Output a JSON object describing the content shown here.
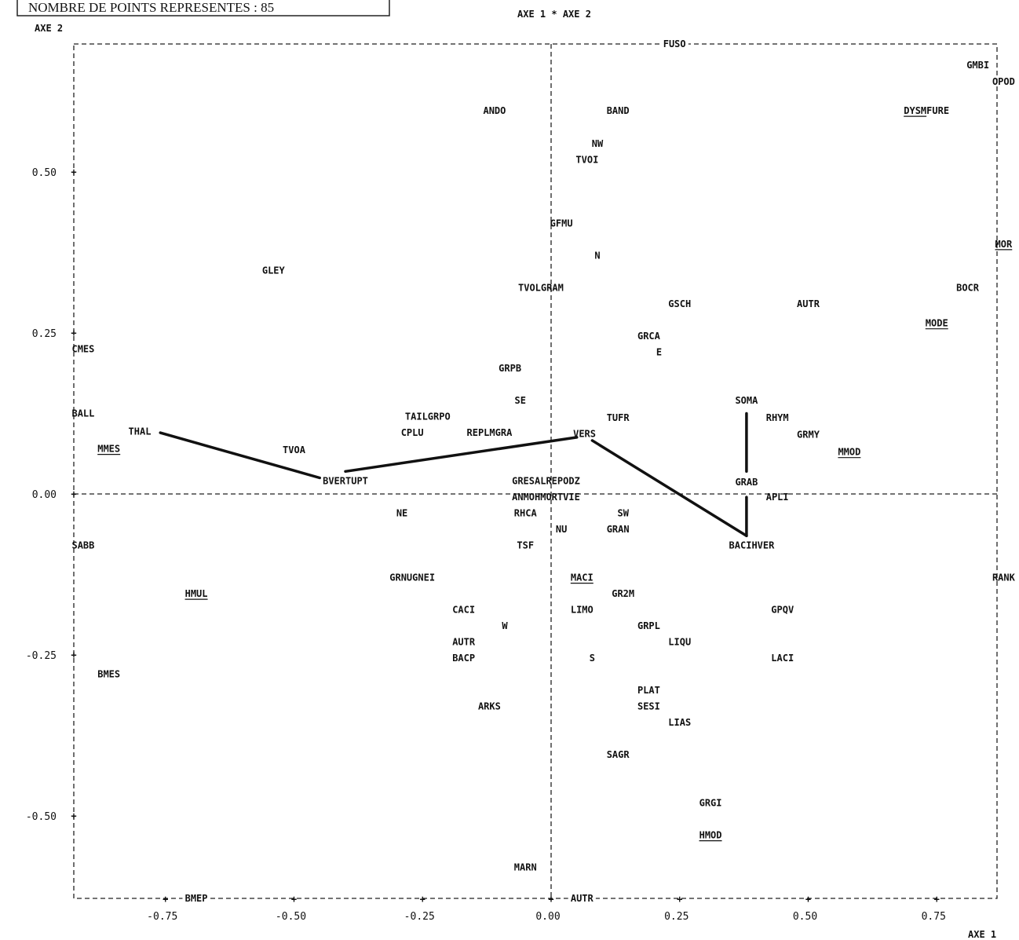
{
  "header": {
    "count_label": "NOMBRE DE POINTS REPRESENTES : 85",
    "plot_title": "AXE 1 * AXE 2"
  },
  "chart_data": {
    "type": "scatter",
    "xlabel": "AXE 1",
    "ylabel": "AXE 2",
    "xlim": [
      -0.93,
      0.88
    ],
    "ylim": [
      -0.62,
      0.7
    ],
    "xticks": [
      {
        "v": -0.75,
        "label": "-0.75"
      },
      {
        "v": -0.5,
        "label": "-0.50"
      },
      {
        "v": -0.25,
        "label": "-0.25"
      },
      {
        "v": 0.0,
        "label": "0.00"
      },
      {
        "v": 0.25,
        "label": "0.25"
      },
      {
        "v": 0.5,
        "label": "0.50"
      },
      {
        "v": 0.75,
        "label": "0.75"
      }
    ],
    "yticks": [
      {
        "v": 0.5,
        "label": "0.50"
      },
      {
        "v": 0.25,
        "label": "0.25"
      },
      {
        "v": 0.0,
        "label": "0.00"
      },
      {
        "v": -0.25,
        "label": "-0.25"
      },
      {
        "v": -0.5,
        "label": "-0.50"
      }
    ],
    "border_labels": [
      {
        "text": "FUSO",
        "x": 0.24,
        "y": 0.695
      },
      {
        "text": "BMEP",
        "x": -0.69,
        "y": -0.62
      },
      {
        "text": "AUTR",
        "x": 0.06,
        "y": -0.62
      }
    ],
    "points": [
      {
        "label": "ANDO",
        "x": -0.11,
        "y": 0.595
      },
      {
        "label": "BAND",
        "x": 0.13,
        "y": 0.595
      },
      {
        "label": "GMBI",
        "x": 0.83,
        "y": 0.666
      },
      {
        "label": "OPOD",
        "x": 0.88,
        "y": 0.64
      },
      {
        "label": "DYSMFURE",
        "x": 0.73,
        "y": 0.595
      },
      {
        "label": "NW",
        "x": 0.09,
        "y": 0.544
      },
      {
        "label": "TVOI",
        "x": 0.07,
        "y": 0.519
      },
      {
        "label": "GFMU",
        "x": 0.02,
        "y": 0.42
      },
      {
        "label": "MOR",
        "x": 0.88,
        "y": 0.388
      },
      {
        "label": "N",
        "x": 0.09,
        "y": 0.37
      },
      {
        "label": "GLEY",
        "x": -0.54,
        "y": 0.347
      },
      {
        "label": "TVOLGRAM",
        "x": -0.02,
        "y": 0.32
      },
      {
        "label": "GSCH",
        "x": 0.25,
        "y": 0.295
      },
      {
        "label": "AUTR",
        "x": 0.5,
        "y": 0.295
      },
      {
        "label": "BOCR",
        "x": 0.81,
        "y": 0.32
      },
      {
        "label": "MODE",
        "x": 0.75,
        "y": 0.265
      },
      {
        "label": "CMES",
        "x": -0.91,
        "y": 0.225
      },
      {
        "label": "GRCA",
        "x": 0.19,
        "y": 0.245
      },
      {
        "label": "E",
        "x": 0.21,
        "y": 0.22
      },
      {
        "label": "GRPB",
        "x": -0.08,
        "y": 0.195
      },
      {
        "label": "SE",
        "x": -0.06,
        "y": 0.145
      },
      {
        "label": "SOMA",
        "x": 0.38,
        "y": 0.145
      },
      {
        "label": "BALL",
        "x": -0.91,
        "y": 0.125
      },
      {
        "label": "TAILGRPO",
        "x": -0.24,
        "y": 0.12
      },
      {
        "label": "TUFR",
        "x": 0.13,
        "y": 0.118
      },
      {
        "label": "RHYM",
        "x": 0.44,
        "y": 0.118
      },
      {
        "label": "THAL",
        "x": -0.8,
        "y": 0.097
      },
      {
        "label": "CPLU",
        "x": -0.27,
        "y": 0.095
      },
      {
        "label": "REPLMGRA",
        "x": -0.12,
        "y": 0.095
      },
      {
        "label": "VERS",
        "x": 0.065,
        "y": 0.093
      },
      {
        "label": "GRMY",
        "x": 0.5,
        "y": 0.092
      },
      {
        "label": "MMES",
        "x": -0.86,
        "y": 0.07
      },
      {
        "label": "TVOA",
        "x": -0.5,
        "y": 0.068
      },
      {
        "label": "MMOD",
        "x": 0.58,
        "y": 0.065
      },
      {
        "label": "BVERTUPT",
        "x": -0.4,
        "y": 0.02
      },
      {
        "label": "GRESALREPODZ",
        "x": -0.01,
        "y": 0.02
      },
      {
        "label": "GRAB",
        "x": 0.38,
        "y": 0.018
      },
      {
        "label": "ANMOHMORTVIE",
        "x": -0.01,
        "y": -0.005
      },
      {
        "label": "APLI",
        "x": 0.44,
        "y": -0.005
      },
      {
        "label": "NE",
        "x": -0.29,
        "y": -0.03
      },
      {
        "label": "RHCA",
        "x": -0.05,
        "y": -0.03
      },
      {
        "label": "SW",
        "x": 0.14,
        "y": -0.03
      },
      {
        "label": "NU",
        "x": 0.02,
        "y": -0.055
      },
      {
        "label": "GRAN",
        "x": 0.13,
        "y": -0.055
      },
      {
        "label": "SABB",
        "x": -0.91,
        "y": -0.08
      },
      {
        "label": "TSF",
        "x": -0.05,
        "y": -0.08
      },
      {
        "label": "BACIHVER",
        "x": 0.39,
        "y": -0.08
      },
      {
        "label": "GRNUGNEI",
        "x": -0.27,
        "y": -0.13
      },
      {
        "label": "MACI",
        "x": 0.06,
        "y": -0.13
      },
      {
        "label": "RANK",
        "x": 0.88,
        "y": -0.13
      },
      {
        "label": "HMUL",
        "x": -0.69,
        "y": -0.155
      },
      {
        "label": "GR2M",
        "x": 0.14,
        "y": -0.155
      },
      {
        "label": "CACI",
        "x": -0.17,
        "y": -0.18
      },
      {
        "label": "LIMO",
        "x": 0.06,
        "y": -0.18
      },
      {
        "label": "GPQV",
        "x": 0.45,
        "y": -0.18
      },
      {
        "label": "W",
        "x": -0.09,
        "y": -0.205
      },
      {
        "label": "GRPL",
        "x": 0.19,
        "y": -0.205
      },
      {
        "label": "AUTR",
        "x": -0.17,
        "y": -0.23
      },
      {
        "label": "LIQU",
        "x": 0.25,
        "y": -0.23
      },
      {
        "label": "BACP",
        "x": -0.17,
        "y": -0.255
      },
      {
        "label": "S",
        "x": 0.08,
        "y": -0.255
      },
      {
        "label": "LACI",
        "x": 0.45,
        "y": -0.255
      },
      {
        "label": "BMES",
        "x": -0.86,
        "y": -0.28
      },
      {
        "label": "PLAT",
        "x": 0.19,
        "y": -0.305
      },
      {
        "label": "ARKS",
        "x": -0.12,
        "y": -0.33
      },
      {
        "label": "SESI",
        "x": 0.19,
        "y": -0.33
      },
      {
        "label": "LIAS",
        "x": 0.25,
        "y": -0.355
      },
      {
        "label": "SAGR",
        "x": 0.13,
        "y": -0.405
      },
      {
        "label": "GRGI",
        "x": 0.31,
        "y": -0.48
      },
      {
        "label": "HMOD",
        "x": 0.31,
        "y": -0.53
      },
      {
        "label": "MARN",
        "x": -0.05,
        "y": -0.58
      }
    ],
    "underlined": [
      "DYSM",
      "MOR",
      "MODE",
      "MMES",
      "MMOD",
      "HMUL",
      "MACI",
      "HMOD"
    ],
    "links": [
      {
        "from": [
          -0.76,
          0.095
        ],
        "to": [
          -0.45,
          0.025
        ]
      },
      {
        "from": [
          -0.4,
          0.035
        ],
        "to": [
          0.05,
          0.088
        ]
      },
      {
        "from": [
          0.08,
          0.083
        ],
        "to": [
          0.38,
          -0.065
        ]
      },
      {
        "from": [
          0.38,
          0.125
        ],
        "to": [
          0.38,
          0.035
        ]
      },
      {
        "from": [
          0.38,
          -0.005
        ],
        "to": [
          0.38,
          -0.065
        ]
      }
    ]
  }
}
